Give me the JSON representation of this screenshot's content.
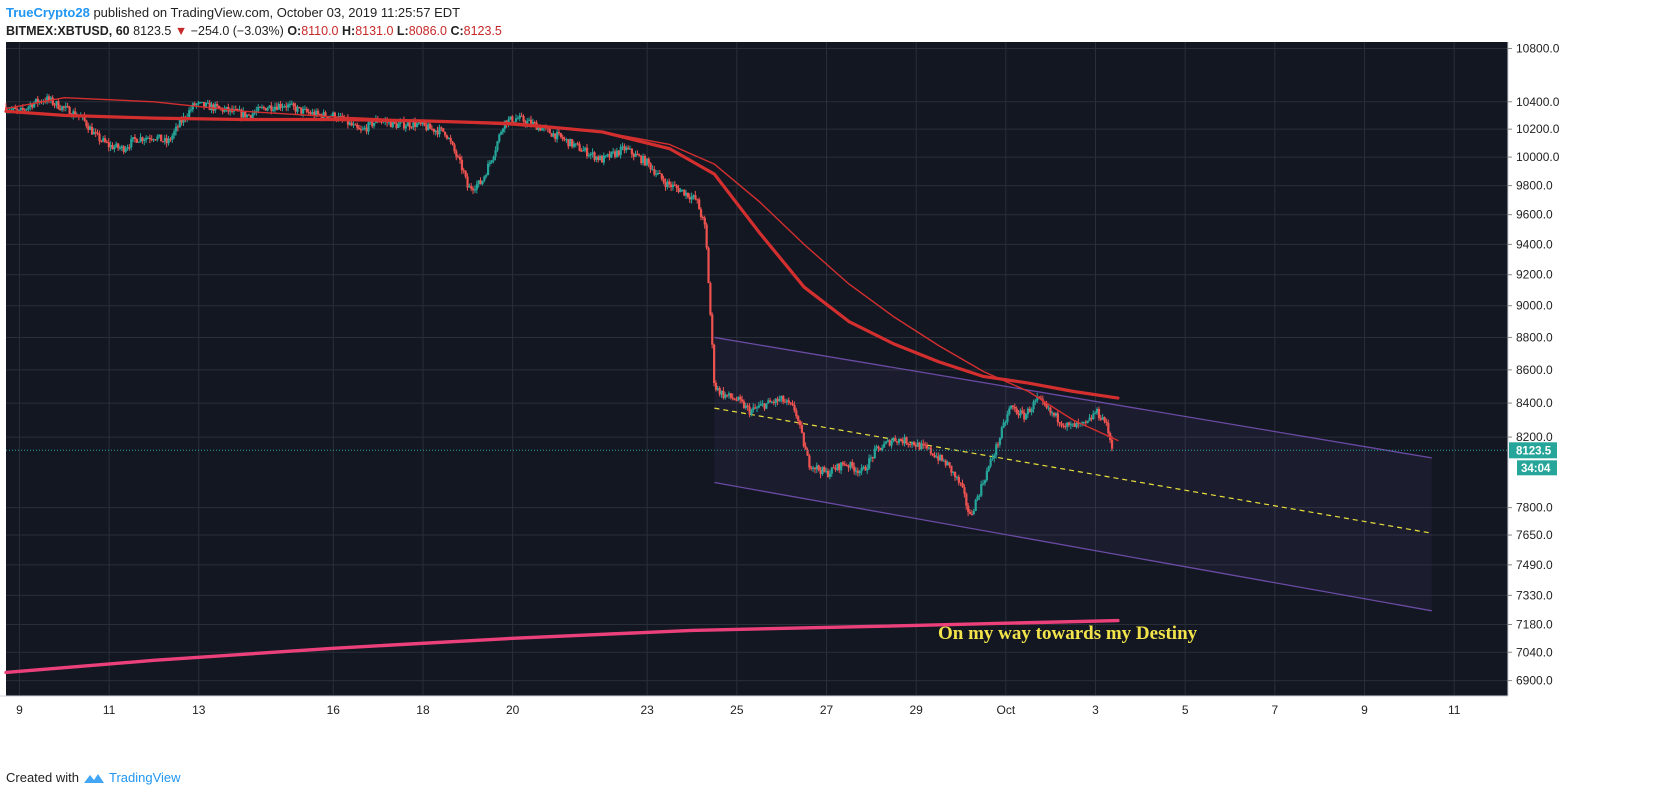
{
  "header": {
    "author": "TrueCrypto28",
    "published": "published on TradingView.com, October 03, 2019 11:25:57 EDT",
    "symbol": "BITMEX:XBTUSD, 60",
    "last": "8123.5",
    "change": "−254.0 (−3.03%)",
    "o_label": "O:",
    "o_value": "8110.0",
    "h_label": "H:",
    "h_value": "8131.0",
    "l_label": "L:",
    "l_value": "8086.0",
    "c_label": "C:",
    "c_value": "8123.5"
  },
  "footer": {
    "created_with": "Created with",
    "brand": "TradingView"
  },
  "colors": {
    "background": "#131722",
    "grid": "#2a2e39",
    "up": "#26a69a",
    "down": "#ef5350",
    "ma": "#d32f2f",
    "long_ma": "#ec407a",
    "channel": "#7e57c2",
    "midline": "#e8e03a",
    "price_badge": "#26a69a"
  },
  "chart_data": {
    "type": "candlestick",
    "y_scale": "log",
    "ylim": [
      6830,
      10850
    ],
    "price_ticks": [
      "10800.0",
      "10400.0",
      "10200.0",
      "10000.0",
      "9800.0",
      "9600.0",
      "9400.0",
      "9200.0",
      "9000.0",
      "8800.0",
      "8600.0",
      "8400.0",
      "8200.0",
      "7800.0",
      "7650.0",
      "7490.0",
      "7330.0",
      "7180.0",
      "7040.0",
      "6900.0"
    ],
    "x_ticks": [
      {
        "day": 9,
        "label": "9"
      },
      {
        "day": 11,
        "label": "11"
      },
      {
        "day": 13,
        "label": "13"
      },
      {
        "day": 16,
        "label": "16"
      },
      {
        "day": 18,
        "label": "18"
      },
      {
        "day": 20,
        "label": "20"
      },
      {
        "day": 23,
        "label": "23"
      },
      {
        "day": 25,
        "label": "25"
      },
      {
        "day": 27,
        "label": "27"
      },
      {
        "day": 29,
        "label": "29"
      },
      {
        "day": 31,
        "label": "Oct"
      },
      {
        "day": 33,
        "label": "3"
      },
      {
        "day": 35,
        "label": "5"
      },
      {
        "day": 37,
        "label": "7"
      },
      {
        "day": 39,
        "label": "9"
      },
      {
        "day": 41,
        "label": "11"
      }
    ],
    "xlim": [
      8.7,
      42.2
    ],
    "x_unit_note": "Sep 2019 days; 31 = Oct 1",
    "price_path": [
      [
        8.7,
        10360
      ],
      [
        9.0,
        10320
      ],
      [
        9.3,
        10390
      ],
      [
        9.6,
        10420
      ],
      [
        10.0,
        10350
      ],
      [
        10.4,
        10280
      ],
      [
        10.7,
        10150
      ],
      [
        11.0,
        10080
      ],
      [
        11.3,
        10060
      ],
      [
        11.6,
        10130
      ],
      [
        12.0,
        10150
      ],
      [
        12.3,
        10100
      ],
      [
        12.6,
        10250
      ],
      [
        12.9,
        10380
      ],
      [
        13.3,
        10360
      ],
      [
        13.7,
        10330
      ],
      [
        14.1,
        10300
      ],
      [
        14.5,
        10360
      ],
      [
        14.9,
        10380
      ],
      [
        15.3,
        10330
      ],
      [
        15.7,
        10300
      ],
      [
        16.0,
        10300
      ],
      [
        16.3,
        10250
      ],
      [
        16.6,
        10180
      ],
      [
        17.0,
        10270
      ],
      [
        17.4,
        10230
      ],
      [
        17.8,
        10240
      ],
      [
        18.2,
        10200
      ],
      [
        18.5,
        10180
      ],
      [
        18.9,
        9900
      ],
      [
        19.0,
        9780
      ],
      [
        19.3,
        9820
      ],
      [
        19.6,
        10050
      ],
      [
        19.8,
        10250
      ],
      [
        20.1,
        10280
      ],
      [
        20.5,
        10230
      ],
      [
        21.0,
        10150
      ],
      [
        21.5,
        10060
      ],
      [
        22.0,
        9980
      ],
      [
        22.5,
        10060
      ],
      [
        23.0,
        9960
      ],
      [
        23.4,
        9820
      ],
      [
        23.8,
        9760
      ],
      [
        24.1,
        9700
      ],
      [
        24.3,
        9500
      ],
      [
        24.5,
        8500
      ],
      [
        24.7,
        8450
      ],
      [
        25.0,
        8420
      ],
      [
        25.3,
        8350
      ],
      [
        25.6,
        8390
      ],
      [
        26.0,
        8420
      ],
      [
        26.3,
        8360
      ],
      [
        26.6,
        8050
      ],
      [
        27.0,
        7990
      ],
      [
        27.4,
        8050
      ],
      [
        27.8,
        8000
      ],
      [
        28.1,
        8120
      ],
      [
        28.5,
        8190
      ],
      [
        28.9,
        8170
      ],
      [
        29.3,
        8120
      ],
      [
        29.7,
        8040
      ],
      [
        30.0,
        7920
      ],
      [
        30.2,
        7750
      ],
      [
        30.5,
        7950
      ],
      [
        30.8,
        8150
      ],
      [
        31.1,
        8380
      ],
      [
        31.4,
        8320
      ],
      [
        31.7,
        8420
      ],
      [
        32.0,
        8340
      ],
      [
        32.4,
        8260
      ],
      [
        32.8,
        8270
      ],
      [
        33.0,
        8350
      ],
      [
        33.2,
        8300
      ],
      [
        33.4,
        8123.5
      ]
    ],
    "series": [
      {
        "kind": "ma",
        "points": [
          [
            8.7,
            10330
          ],
          [
            10,
            10300
          ],
          [
            12,
            10280
          ],
          [
            14,
            10270
          ],
          [
            16,
            10270
          ],
          [
            18,
            10260
          ],
          [
            20,
            10240
          ],
          [
            22,
            10180
          ],
          [
            23.5,
            10060
          ],
          [
            24.5,
            9880
          ],
          [
            25.5,
            9480
          ],
          [
            26.5,
            9120
          ],
          [
            27.5,
            8900
          ],
          [
            28.5,
            8760
          ],
          [
            29.5,
            8650
          ],
          [
            30.5,
            8560
          ],
          [
            31.5,
            8520
          ],
          [
            32.5,
            8470
          ],
          [
            33.5,
            8430
          ]
        ]
      },
      {
        "kind": "ma_thin",
        "points": [
          [
            8.7,
            10350
          ],
          [
            10,
            10430
          ],
          [
            12,
            10400
          ],
          [
            14,
            10330
          ],
          [
            16,
            10290
          ],
          [
            18,
            10260
          ],
          [
            20,
            10230
          ],
          [
            22,
            10180
          ],
          [
            23.5,
            10090
          ],
          [
            24.5,
            9950
          ],
          [
            25.5,
            9690
          ],
          [
            26.5,
            9400
          ],
          [
            27.5,
            9140
          ],
          [
            28.5,
            8930
          ],
          [
            29.5,
            8750
          ],
          [
            30.5,
            8590
          ],
          [
            31.5,
            8470
          ],
          [
            32.5,
            8300
          ],
          [
            33.5,
            8180
          ]
        ]
      },
      {
        "kind": "long_ma",
        "points": [
          [
            8.7,
            6940
          ],
          [
            12,
            7000
          ],
          [
            16,
            7060
          ],
          [
            20,
            7110
          ],
          [
            24,
            7150
          ],
          [
            28,
            7170
          ],
          [
            33.5,
            7200
          ]
        ]
      },
      {
        "kind": "channel_top",
        "points": [
          [
            24.5,
            8800
          ],
          [
            40.5,
            8080
          ]
        ]
      },
      {
        "kind": "channel_bottom",
        "points": [
          [
            24.5,
            7940
          ],
          [
            40.5,
            7250
          ]
        ]
      },
      {
        "kind": "channel_mid",
        "points": [
          [
            24.5,
            8370
          ],
          [
            40.5,
            7660
          ]
        ]
      }
    ],
    "current_price": {
      "value": 8123.5,
      "label": "8123.5",
      "countdown": "34:04"
    },
    "annotation": "On my way towards my Destiny"
  }
}
